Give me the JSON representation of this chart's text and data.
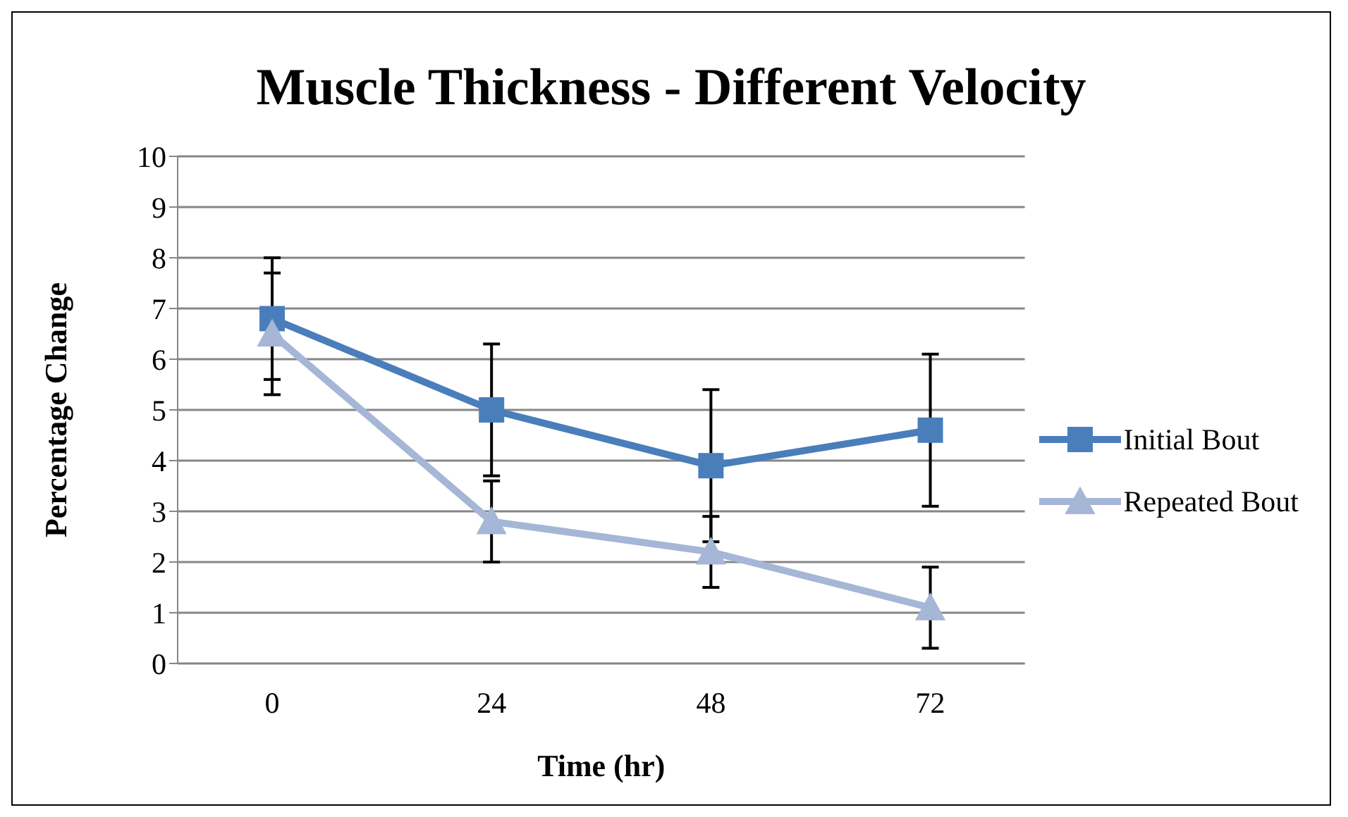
{
  "chart_data": {
    "type": "line",
    "title": "Muscle Thickness - Different Velocity",
    "xlabel": "Time (hr)",
    "ylabel": "Percentage Change",
    "categories": [
      "0",
      "24",
      "48",
      "72"
    ],
    "series": [
      {
        "name": "Initial Bout",
        "color": "#4a7ebb",
        "marker": "square",
        "values": [
          6.8,
          5.0,
          3.9,
          4.6
        ],
        "errors": [
          [
            5.6,
            8.0
          ],
          [
            3.7,
            6.3
          ],
          [
            2.4,
            5.4
          ],
          [
            3.1,
            6.1
          ]
        ]
      },
      {
        "name": "Repeated Bout",
        "color": "#a5b6d6",
        "marker": "triangle",
        "values": [
          6.5,
          2.8,
          2.2,
          1.1
        ],
        "errors": [
          [
            5.3,
            7.7
          ],
          [
            2.0,
            3.6
          ],
          [
            1.5,
            2.9
          ],
          [
            0.3,
            1.9
          ]
        ]
      }
    ],
    "ylim": [
      0,
      10
    ],
    "yticks": [
      0,
      1,
      2,
      3,
      4,
      5,
      6,
      7,
      8,
      9,
      10
    ],
    "grid": "y",
    "legend": "right",
    "line_style": "solid"
  }
}
